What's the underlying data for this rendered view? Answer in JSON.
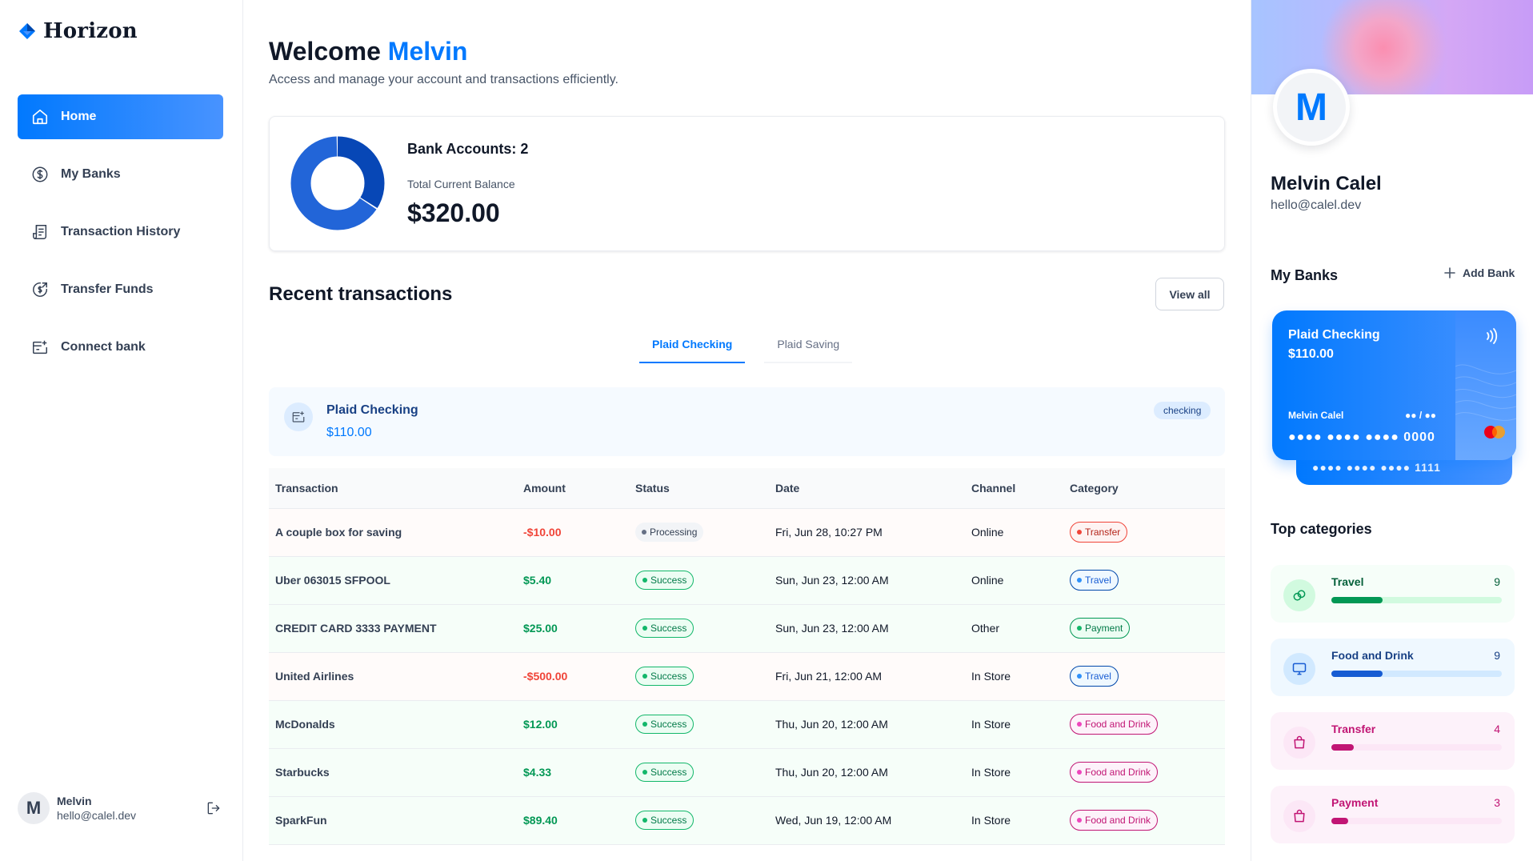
{
  "brand": {
    "name": "Horizon",
    "logo_icon": "horizon-logo-icon"
  },
  "sidebar": {
    "items": [
      {
        "label": "Home",
        "icon": "home-icon",
        "active": true
      },
      {
        "label": "My Banks",
        "icon": "dollar-circle-icon",
        "active": false
      },
      {
        "label": "Transaction History",
        "icon": "receipt-icon",
        "active": false
      },
      {
        "label": "Transfer Funds",
        "icon": "money-send-icon",
        "active": false
      },
      {
        "label": "Connect bank",
        "icon": "connect-bank-icon",
        "active": false
      }
    ],
    "footer": {
      "avatar_initial": "M",
      "name": "Melvin",
      "email": "hello@calel.dev",
      "logout_icon": "logout-icon"
    }
  },
  "header": {
    "welcome_prefix": "Welcome",
    "user_first_name": "Melvin",
    "subtitle": "Access and manage your account and transactions efficiently."
  },
  "balance": {
    "accounts_label": "Bank Accounts: 2",
    "total_label": "Total Current Balance",
    "total_amount": "$320.00",
    "donut": {
      "segments": [
        {
          "value": 110,
          "color": "#0747b6"
        },
        {
          "value": 210,
          "color": "#2265d8"
        }
      ]
    }
  },
  "recent": {
    "title": "Recent transactions",
    "view_all": "View all",
    "tabs": [
      {
        "label": "Plaid Checking",
        "active": true
      },
      {
        "label": "Plaid Saving",
        "active": false
      }
    ],
    "account": {
      "name": "Plaid Checking",
      "balance": "$110.00",
      "type": "checking"
    },
    "columns": [
      "Transaction",
      "Amount",
      "Status",
      "Date",
      "Channel",
      "Category"
    ],
    "rows": [
      {
        "name": "A couple box for saving",
        "amount": "-$10.00",
        "sign": "neg",
        "status": "Processing",
        "status_kind": "processing",
        "date": "Fri, Jun 28, 10:27 PM",
        "channel": "Online",
        "category": "Transfer",
        "cat_kind": "transfer"
      },
      {
        "name": "Uber 063015 SFPOOL",
        "amount": "$5.40",
        "sign": "pos",
        "status": "Success",
        "status_kind": "success",
        "date": "Sun, Jun 23, 12:00 AM",
        "channel": "Online",
        "category": "Travel",
        "cat_kind": "travel"
      },
      {
        "name": "CREDIT CARD 3333 PAYMENT",
        "amount": "$25.00",
        "sign": "pos",
        "status": "Success",
        "status_kind": "success",
        "date": "Sun, Jun 23, 12:00 AM",
        "channel": "Other",
        "category": "Payment",
        "cat_kind": "payment"
      },
      {
        "name": "United Airlines",
        "amount": "-$500.00",
        "sign": "neg",
        "status": "Success",
        "status_kind": "success",
        "date": "Fri, Jun 21, 12:00 AM",
        "channel": "In Store",
        "category": "Travel",
        "cat_kind": "travel"
      },
      {
        "name": "McDonalds",
        "amount": "$12.00",
        "sign": "pos",
        "status": "Success",
        "status_kind": "success",
        "date": "Thu, Jun 20, 12:00 AM",
        "channel": "In Store",
        "category": "Food and Drink",
        "cat_kind": "food"
      },
      {
        "name": "Starbucks",
        "amount": "$4.33",
        "sign": "pos",
        "status": "Success",
        "status_kind": "success",
        "date": "Thu, Jun 20, 12:00 AM",
        "channel": "In Store",
        "category": "Food and Drink",
        "cat_kind": "food"
      },
      {
        "name": "SparkFun",
        "amount": "$89.40",
        "sign": "pos",
        "status": "Success",
        "status_kind": "success",
        "date": "Wed, Jun 19, 12:00 AM",
        "channel": "In Store",
        "category": "Food and Drink",
        "cat_kind": "food"
      }
    ]
  },
  "profile": {
    "avatar_initial": "M",
    "name": "Melvin Calel",
    "email": "hello@calel.dev"
  },
  "my_banks": {
    "title": "My Banks",
    "add_label": "Add Bank",
    "card": {
      "bank": "Plaid Checking",
      "balance": "$110.00",
      "owner": "Melvin Calel",
      "expiry": "●● / ●●",
      "number": "●●●● ●●●● ●●●● 0000"
    },
    "back_card": {
      "number": "●●●● ●●●● ●●●● 1111"
    }
  },
  "top_categories": {
    "title": "Top categories",
    "items": [
      {
        "name": "Travel",
        "count": "9",
        "progress": 0.3,
        "kind": "travel",
        "icon": "link-rings-icon"
      },
      {
        "name": "Food and Drink",
        "count": "9",
        "progress": 0.3,
        "kind": "food",
        "icon": "monitor-icon"
      },
      {
        "name": "Transfer",
        "count": "4",
        "progress": 0.13,
        "kind": "transfer",
        "icon": "shopping-bag-icon"
      },
      {
        "name": "Payment",
        "count": "3",
        "progress": 0.1,
        "kind": "payment",
        "icon": "shopping-bag-icon"
      }
    ]
  }
}
